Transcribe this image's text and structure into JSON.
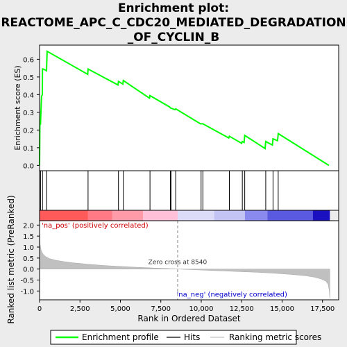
{
  "chart_data": {
    "type": "line",
    "title_lines": [
      "Enrichment plot:",
      "REACTOME_APC_C_CDC20_MEDIATED_DEGRADATION",
      "_OF_CYCLIN_B"
    ],
    "top_panel": {
      "ylabel": "Enrichment score (ES)",
      "ylim": [
        -0.03,
        0.68
      ],
      "yticks": [
        0.0,
        0.1,
        0.2,
        0.3,
        0.4,
        0.5,
        0.6
      ],
      "ytick_labels": [
        "0.0",
        "0.1",
        "0.2",
        "0.3",
        "0.4",
        "0.5",
        "0.6"
      ],
      "series": [
        {
          "name": "Enrichment profile",
          "color": "#00ff00",
          "x": [
            0,
            20,
            60,
            120,
            170,
            180,
            230,
            430,
            470,
            2980,
            3000,
            4850,
            4880,
            5150,
            5180,
            6800,
            6830,
            8050,
            8090,
            8380,
            8420,
            9950,
            9990,
            10100,
            11700,
            11740,
            12500,
            12540,
            12650,
            12690,
            13950,
            13990,
            14400,
            14440,
            14720,
            14760,
            17900
          ],
          "y": [
            0.0,
            0.245,
            0.24,
            0.39,
            0.4,
            0.545,
            0.545,
            0.535,
            0.645,
            0.515,
            0.545,
            0.455,
            0.475,
            0.46,
            0.48,
            0.38,
            0.395,
            0.33,
            0.325,
            0.315,
            0.32,
            0.235,
            0.235,
            0.235,
            0.155,
            0.165,
            0.125,
            0.135,
            0.13,
            0.17,
            0.095,
            0.135,
            0.115,
            0.15,
            0.14,
            0.18,
            0.0
          ]
        }
      ]
    },
    "hits_panel": {
      "hit_positions": [
        60,
        180,
        440,
        3000,
        4880,
        5180,
        6830,
        8090,
        8130,
        8420,
        9990,
        10100,
        11740,
        12540,
        12690,
        13990,
        14440,
        14760
      ]
    },
    "bottom_panel": {
      "ylabel": "Ranked list metric (PreRanked)",
      "xlabel": "Rank in Ordered Dataset",
      "ylim": [
        -1.4,
        2.2
      ],
      "yticks": [
        2.0,
        1.5,
        1.0,
        0.5,
        0.0,
        -0.5,
        -1.0
      ],
      "ytick_labels": [
        "2.0",
        "1.5",
        "1.0",
        "0.5",
        "0.0",
        "-0.5",
        "-1.0"
      ],
      "xlim": [
        0,
        18500
      ],
      "xticks": [
        0,
        2500,
        5000,
        7500,
        10000,
        12500,
        15000,
        17500
      ],
      "xtick_labels": [
        "0",
        "2,500",
        "5,000",
        "7,500",
        "10,000",
        "12,500",
        "15,000",
        "17,500"
      ],
      "n_genes": 17956,
      "metric_profile": {
        "x": [
          0,
          40,
          100,
          200,
          350,
          600,
          1000,
          1500,
          2000,
          3000,
          4000,
          5000,
          6000,
          7000,
          8000,
          8540,
          9500,
          10500,
          11500,
          12500,
          13500,
          14500,
          15500,
          16500,
          17000,
          17400,
          17700,
          17850,
          17920,
          17956
        ],
        "y": [
          1.85,
          1.1,
          0.85,
          0.7,
          0.58,
          0.48,
          0.4,
          0.34,
          0.29,
          0.22,
          0.16,
          0.12,
          0.08,
          0.05,
          0.02,
          0.0,
          -0.03,
          -0.06,
          -0.09,
          -0.12,
          -0.15,
          -0.19,
          -0.24,
          -0.31,
          -0.37,
          -0.45,
          -0.55,
          -0.7,
          -1.0,
          -1.35
        ]
      },
      "zero_cross_label": "Zero cross at 8540",
      "zero_cross": 8540,
      "pos_label": "'na_pos' (positively correlated)",
      "neg_label": "'na_neg' (negatively correlated)",
      "pos_label_color": "#cc0000",
      "neg_label_color": "#0000cc"
    },
    "color_bar": [
      {
        "from": 0,
        "to": 3000,
        "color": "#ff5a5a"
      },
      {
        "from": 3000,
        "to": 4500,
        "color": "#ff7a84"
      },
      {
        "from": 4500,
        "to": 6400,
        "color": "#ff9aa8"
      },
      {
        "from": 6400,
        "to": 8540,
        "color": "#ffc0d8"
      },
      {
        "from": 8540,
        "to": 10800,
        "color": "#dcdcf8"
      },
      {
        "from": 10800,
        "to": 12700,
        "color": "#c4c4f4"
      },
      {
        "from": 12700,
        "to": 14100,
        "color": "#8a8aee"
      },
      {
        "from": 14100,
        "to": 16900,
        "color": "#5a5ae0"
      },
      {
        "from": 16900,
        "to": 17956,
        "color": "#1a10c0"
      }
    ],
    "legend": [
      {
        "label": "Enrichment profile",
        "color": "#00ff00"
      },
      {
        "label": "Hits",
        "color": "#000000"
      },
      {
        "label": "Ranking metric scores",
        "color": "#c0c0c0"
      }
    ]
  }
}
